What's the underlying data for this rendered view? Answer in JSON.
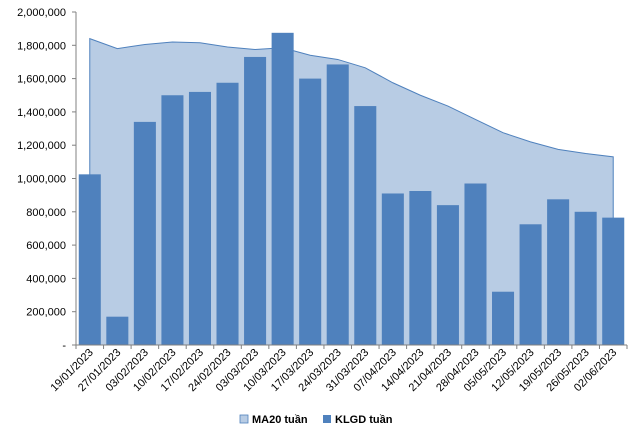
{
  "chart_data": {
    "type": "bar",
    "categories": [
      "19/01/2023",
      "27/01/2023",
      "03/02/2023",
      "10/02/2023",
      "17/02/2023",
      "24/02/2023",
      "03/03/2023",
      "10/03/2023",
      "17/03/2023",
      "24/03/2023",
      "31/03/2023",
      "07/04/2023",
      "14/04/2023",
      "21/04/2023",
      "28/04/2023",
      "05/05/2023",
      "12/05/2023",
      "19/05/2023",
      "26/05/2023",
      "02/06/2023"
    ],
    "series": [
      {
        "name": "MA20 tuần",
        "kind": "area",
        "color": "#b8cce4",
        "stroke": "#4f81bd",
        "values": [
          1840000,
          1780000,
          1805000,
          1820000,
          1815000,
          1790000,
          1775000,
          1785000,
          1740000,
          1715000,
          1665000,
          1575000,
          1500000,
          1435000,
          1355000,
          1275000,
          1220000,
          1175000,
          1150000,
          1130000
        ]
      },
      {
        "name": "KLGD tuần",
        "kind": "bar",
        "color": "#4f81bd",
        "values": [
          1025000,
          170000,
          1340000,
          1500000,
          1520000,
          1575000,
          1730000,
          1875000,
          1600000,
          1685000,
          1435000,
          910000,
          925000,
          840000,
          970000,
          320000,
          725000,
          875000,
          800000,
          765000
        ]
      }
    ],
    "yticks": [
      "-",
      "200,000",
      "400,000",
      "600,000",
      "800,000",
      "1,000,000",
      "1,200,000",
      "1,400,000",
      "1,600,000",
      "1,800,000",
      "2,000,000"
    ],
    "ylim": [
      0,
      2000000
    ],
    "grid": false,
    "legend": "bottom"
  }
}
